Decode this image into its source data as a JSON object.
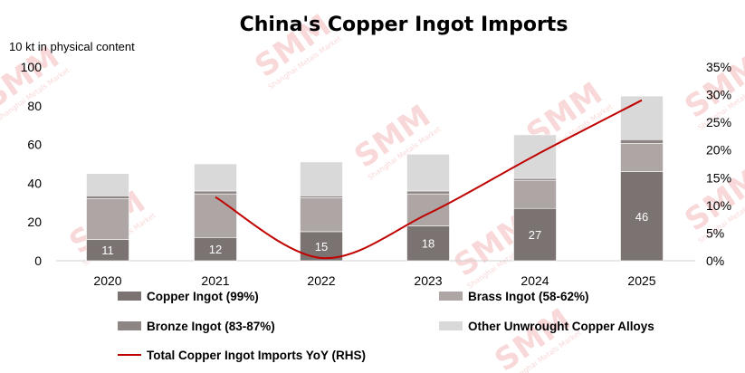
{
  "chart_data": {
    "type": "bar",
    "title": "China's Copper Ingot Imports",
    "ylabel": "10 kt in physical content",
    "ylim": [
      0,
      100
    ],
    "yticks": [
      0,
      20,
      40,
      60,
      80,
      100
    ],
    "y2lim": [
      0,
      0.35
    ],
    "y2ticks": [
      "0%",
      "5%",
      "10%",
      "15%",
      "20%",
      "25%",
      "30%",
      "35%"
    ],
    "categories": [
      "2020",
      "2021",
      "2022",
      "2023",
      "2024",
      "2025"
    ],
    "stacked": true,
    "series": [
      {
        "name": "Copper Ingot (99%)",
        "color": "#7a7372",
        "values": [
          11,
          12,
          15,
          18,
          27,
          46
        ],
        "labels": [
          "11",
          "12",
          "15",
          "18",
          "27",
          "46"
        ]
      },
      {
        "name": "Brass Ingot (58-62%)",
        "color": "#ada6a5",
        "values": [
          21,
          22.5,
          17.5,
          16.5,
          14.5,
          14.5
        ]
      },
      {
        "name": "Bronze Ingot (83-87%)",
        "color": "#8c8584",
        "values": [
          1.5,
          1.5,
          1,
          1.5,
          1,
          2
        ]
      },
      {
        "name": "Other Unwrought Copper Alloys",
        "color": "#d9d9d9",
        "values": [
          11.5,
          14,
          17.5,
          19,
          22.5,
          22.5
        ]
      }
    ],
    "line_series": {
      "name": "Total Copper Ingot Imports YoY (RHS)",
      "color": "#c00000",
      "axis": "right",
      "x": [
        "2021",
        "2022",
        "2023",
        "2024",
        "2025"
      ],
      "values": [
        0.115,
        0.005,
        0.085,
        0.19,
        0.29
      ]
    },
    "legend_position": "bottom",
    "grid": false
  },
  "watermark": {
    "text": "SMM",
    "subtext": "Shanghai Metals Market",
    "color": "#f4b9b9"
  }
}
